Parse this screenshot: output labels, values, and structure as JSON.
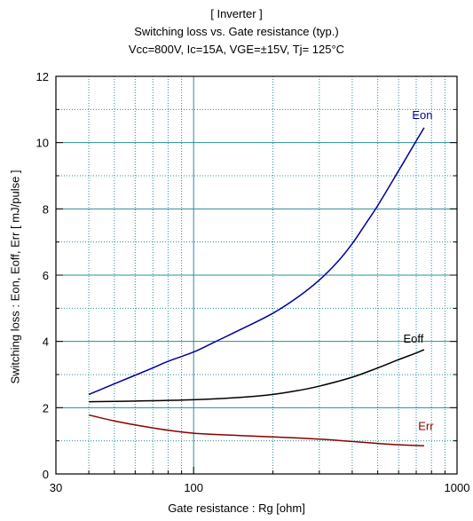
{
  "chart_data": {
    "type": "line",
    "title": "[ Inverter ]",
    "subtitle": "Switching loss  vs.  Gate resistance (typ.)",
    "conditions": "Vcc=800V, Ic=15A, VGE=±15V, Tj= 125°C",
    "xlabel": "Gate resistance  :  Rg  [ohm]",
    "ylabel": "Switching loss  :  Eon, Eoff, Err  [ mJ/pulse ]",
    "x_scale": "log",
    "xlim": [
      30,
      1000
    ],
    "ylim": [
      0,
      12
    ],
    "x_ticks": [
      "30",
      "100",
      "1000"
    ],
    "y_ticks": [
      "0",
      "2",
      "4",
      "6",
      "8",
      "10",
      "12"
    ],
    "grid": true,
    "series": [
      {
        "name": "Eon",
        "color": "#000099",
        "x": [
          40,
          50,
          60,
          70,
          80,
          100,
          120,
          150,
          200,
          250,
          300,
          350,
          400,
          450,
          500,
          600,
          700,
          750
        ],
        "y": [
          2.4,
          2.72,
          2.98,
          3.2,
          3.4,
          3.68,
          3.98,
          4.35,
          4.85,
          5.35,
          5.85,
          6.38,
          6.95,
          7.55,
          8.1,
          9.15,
          10.05,
          10.45
        ]
      },
      {
        "name": "Eoff",
        "color": "#000000",
        "x": [
          40,
          60,
          100,
          150,
          200,
          250,
          300,
          400,
          500,
          600,
          700,
          750
        ],
        "y": [
          2.18,
          2.2,
          2.24,
          2.31,
          2.4,
          2.52,
          2.65,
          2.92,
          3.2,
          3.45,
          3.65,
          3.75
        ]
      },
      {
        "name": "Err",
        "color": "#880000",
        "x": [
          40,
          50,
          60,
          80,
          100,
          150,
          200,
          300,
          400,
          500,
          600,
          750
        ],
        "y": [
          1.78,
          1.6,
          1.48,
          1.32,
          1.23,
          1.16,
          1.12,
          1.05,
          0.98,
          0.92,
          0.88,
          0.85
        ]
      }
    ]
  }
}
